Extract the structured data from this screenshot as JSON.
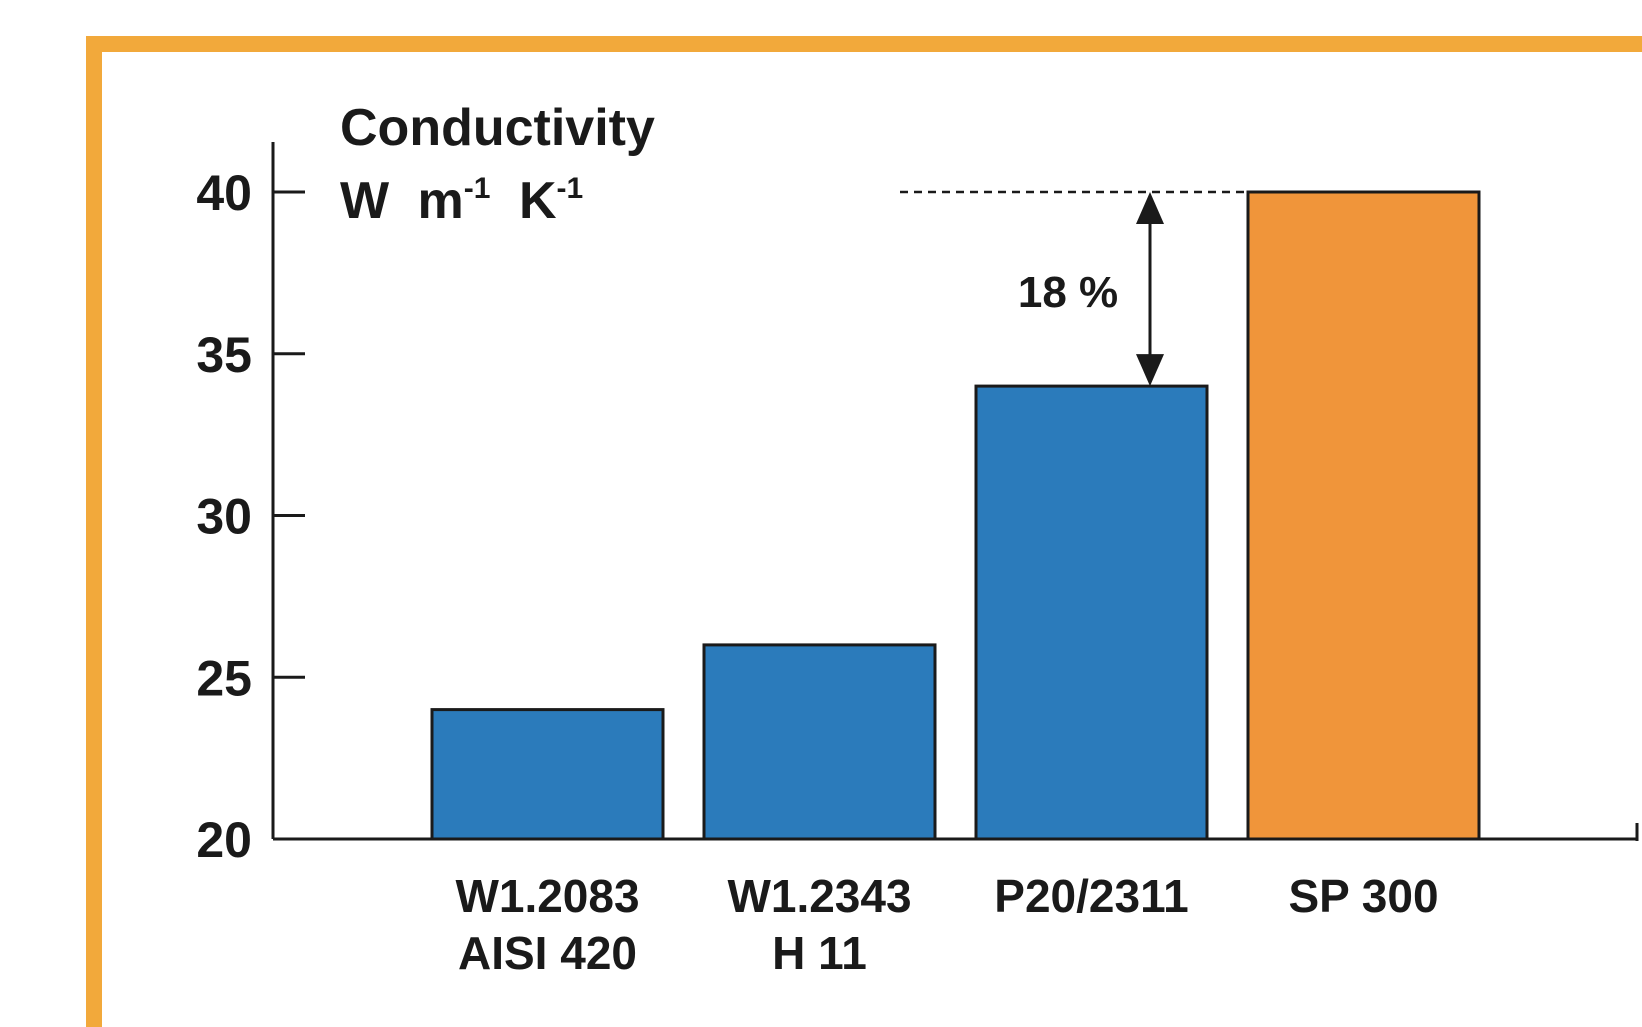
{
  "chart_data": {
    "type": "bar",
    "title_line1": "Conductivity",
    "unit": {
      "w": "W",
      "m": "m",
      "m_exp": "-1",
      "k": "K",
      "k_exp": "-1"
    },
    "categories": [
      [
        "W1.2083",
        "AISI 420"
      ],
      [
        "W1.2343",
        "H 11"
      ],
      [
        "P20/2311"
      ],
      [
        "SP 300"
      ]
    ],
    "values": [
      24,
      26,
      34,
      40
    ],
    "bar_colors": [
      "#2b7bbb",
      "#2b7bbb",
      "#2b7bbb",
      "#f0953a"
    ],
    "ylim": [
      20,
      40
    ],
    "yticks": [
      20,
      25,
      30,
      35,
      40
    ],
    "grid": false,
    "annotation": {
      "text": "18 %",
      "from_value": 34,
      "to_value": 40
    },
    "frame_color": "#f2a93b"
  }
}
